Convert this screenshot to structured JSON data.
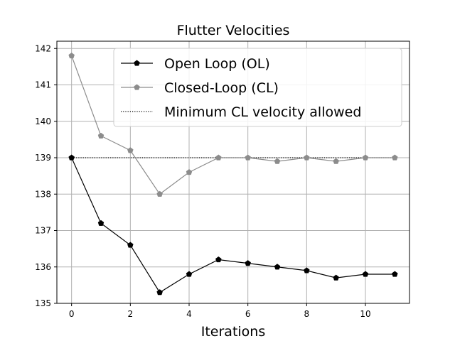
{
  "chart_data": {
    "type": "line",
    "title": "Flutter Velocities",
    "xlabel": "Iterations",
    "ylabel": "",
    "xlim": [
      -0.5,
      11.5
    ],
    "ylim": [
      135,
      142.2
    ],
    "xticks": [
      0,
      2,
      4,
      6,
      8,
      10
    ],
    "yticks": [
      135,
      136,
      137,
      138,
      139,
      140,
      141,
      142
    ],
    "grid": true,
    "legend_position": "top-right",
    "x": [
      0,
      1,
      2,
      3,
      4,
      5,
      6,
      7,
      8,
      9,
      10,
      11
    ],
    "series": [
      {
        "name": "Open Loop (OL)",
        "color": "#000000",
        "marker": "pentagon",
        "linestyle": "solid",
        "values": [
          139.0,
          137.2,
          136.6,
          135.3,
          135.8,
          136.2,
          136.1,
          136.0,
          135.9,
          135.7,
          135.8,
          135.8
        ]
      },
      {
        "name": "Closed-Loop (CL)",
        "color": "#8c8c8c",
        "marker": "pentagon",
        "linestyle": "solid",
        "values": [
          141.8,
          139.6,
          139.2,
          138.0,
          138.6,
          139.0,
          139.0,
          138.9,
          139.0,
          138.9,
          139.0,
          139.0
        ]
      },
      {
        "name": "Minimum CL velocity allowed",
        "color": "#000000",
        "marker": "none",
        "linestyle": "dotted",
        "values": [
          139,
          139,
          139,
          139,
          139,
          139,
          139,
          139,
          139,
          139,
          139,
          139
        ]
      }
    ]
  }
}
